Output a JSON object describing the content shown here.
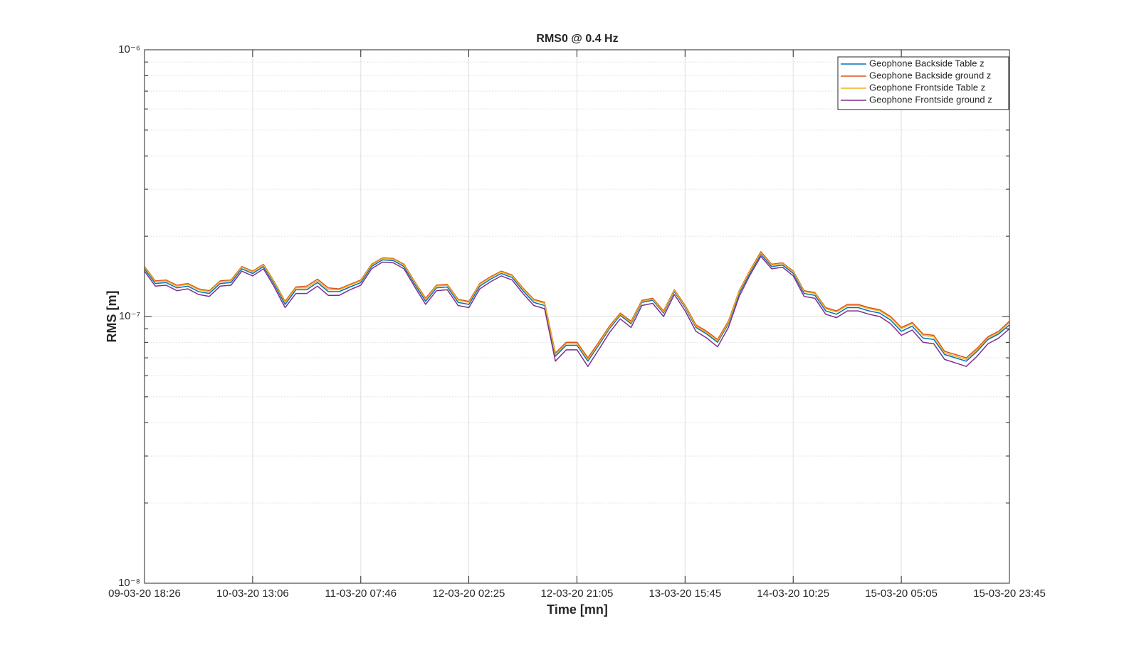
{
  "chart_data": {
    "type": "line",
    "title": "RMS0 @ 0.4 Hz",
    "xlabel": "Time [mn]",
    "ylabel": "RMS [m]",
    "yscale": "log",
    "grid": true,
    "legend": "upper right",
    "xlim": [
      "09-03-20 18:26",
      "15-03-20 23:45"
    ],
    "xticks": [
      "09-03-20 18:26",
      "10-03-20 13:06",
      "11-03-20 07:46",
      "12-03-20 02:25",
      "12-03-20 21:05",
      "13-03-20 15:45",
      "14-03-20 10:25",
      "15-03-20 05:05",
      "15-03-20 23:45"
    ],
    "ylim": [
      1e-08,
      1e-06
    ],
    "yticks": [
      {
        "value": 1e-08,
        "label": "10⁻⁸"
      },
      {
        "value": 1e-07,
        "label": "10⁻⁷"
      },
      {
        "value": 1e-06,
        "label": "10⁻⁶"
      }
    ],
    "yminorticks": [
      2e-08,
      3e-08,
      4e-08,
      5e-08,
      6e-08,
      7e-08,
      8e-08,
      9e-08,
      2e-07,
      3e-07,
      4e-07,
      5e-07,
      6e-07,
      7e-07,
      8e-07,
      9e-07
    ],
    "x": [
      "09-03-20 18:26",
      "09-03-20 20:18",
      "09-03-20 22:10",
      "10-03-20 00:02",
      "10-03-20 01:54",
      "10-03-20 03:46",
      "10-03-20 05:38",
      "10-03-20 07:30",
      "10-03-20 09:22",
      "10-03-20 11:14",
      "10-03-20 13:06",
      "10-03-20 14:58",
      "10-03-20 16:50",
      "10-03-20 18:42",
      "10-03-20 20:34",
      "10-03-20 22:26",
      "11-03-20 00:18",
      "11-03-20 02:10",
      "11-03-20 04:02",
      "11-03-20 05:54",
      "11-03-20 07:46",
      "11-03-20 09:38",
      "11-03-20 11:30",
      "11-03-20 13:22",
      "11-03-20 15:14",
      "11-03-20 17:06",
      "11-03-20 18:58",
      "11-03-20 20:50",
      "11-03-20 22:42",
      "12-03-20 00:34",
      "12-03-20 02:26",
      "12-03-20 04:18",
      "12-03-20 06:10",
      "12-03-20 08:02",
      "12-03-20 09:54",
      "12-03-20 11:46",
      "12-03-20 13:38",
      "12-03-20 15:30",
      "12-03-20 17:22",
      "12-03-20 19:14",
      "12-03-20 21:06",
      "12-03-20 22:58",
      "13-03-20 00:50",
      "13-03-20 02:42",
      "13-03-20 04:34",
      "13-03-20 06:26",
      "13-03-20 08:18",
      "13-03-20 10:10",
      "13-03-20 12:02",
      "13-03-20 13:54",
      "13-03-20 15:46",
      "13-03-20 17:38",
      "13-03-20 19:30",
      "13-03-20 21:22",
      "13-03-20 23:14",
      "14-03-20 01:06",
      "14-03-20 02:58",
      "14-03-20 04:50",
      "14-03-20 06:42",
      "14-03-20 08:34",
      "14-03-20 10:26",
      "14-03-20 12:18",
      "14-03-20 14:10",
      "14-03-20 16:02",
      "14-03-20 17:54",
      "14-03-20 19:46",
      "14-03-20 21:38",
      "14-03-20 23:30",
      "15-03-20 01:22",
      "15-03-20 03:14",
      "15-03-20 05:06",
      "15-03-20 06:58",
      "15-03-20 08:50",
      "15-03-20 10:42",
      "15-03-20 12:34",
      "15-03-20 14:26",
      "15-03-20 16:18",
      "15-03-20 18:10",
      "15-03-20 20:02",
      "15-03-20 21:54",
      "15-03-20 23:45"
    ],
    "series": [
      {
        "name": "Geophone Backside Table z",
        "color": "#0072bd",
        "values": [
          1.51e-07,
          1.33e-07,
          1.34e-07,
          1.28e-07,
          1.3e-07,
          1.24e-07,
          1.22e-07,
          1.33e-07,
          1.34e-07,
          1.51e-07,
          1.45e-07,
          1.54e-07,
          1.32e-07,
          1.11e-07,
          1.26e-07,
          1.26e-07,
          1.34e-07,
          1.24e-07,
          1.24e-07,
          1.29e-07,
          1.34e-07,
          1.54e-07,
          1.63e-07,
          1.62e-07,
          1.54e-07,
          1.32e-07,
          1.14e-07,
          1.28e-07,
          1.29e-07,
          1.13e-07,
          1.11e-07,
          1.3e-07,
          1.38e-07,
          1.45e-07,
          1.4e-07,
          1.25e-07,
          1.13e-07,
          1.1e-07,
          7.1e-08,
          7.8e-08,
          7.8e-08,
          6.8e-08,
          7.8e-08,
          9e-08,
          1.01e-07,
          9.4e-08,
          1.13e-07,
          1.15e-07,
          1.03e-07,
          1.24e-07,
          1.08e-07,
          9.1e-08,
          8.6e-08,
          8e-08,
          9.4e-08,
          1.22e-07,
          1.46e-07,
          1.71e-07,
          1.54e-07,
          1.56e-07,
          1.45e-07,
          1.22e-07,
          1.2e-07,
          1.05e-07,
          1.02e-07,
          1.08e-07,
          1.08e-07,
          1.05e-07,
          1.03e-07,
          9.7e-08,
          8.8e-08,
          9.2e-08,
          8.3e-08,
          8.2e-08,
          7.2e-08,
          7e-08,
          6.8e-08,
          7.4e-08,
          8.2e-08,
          8.6e-08,
          9.3e-08
        ]
      },
      {
        "name": "Geophone Backside ground z",
        "color": "#d95319",
        "values": [
          1.54e-07,
          1.36e-07,
          1.37e-07,
          1.31e-07,
          1.33e-07,
          1.27e-07,
          1.25e-07,
          1.36e-07,
          1.37e-07,
          1.54e-07,
          1.48e-07,
          1.57e-07,
          1.35e-07,
          1.14e-07,
          1.29e-07,
          1.3e-07,
          1.38e-07,
          1.28e-07,
          1.27e-07,
          1.32e-07,
          1.37e-07,
          1.57e-07,
          1.66e-07,
          1.65e-07,
          1.57e-07,
          1.35e-07,
          1.17e-07,
          1.31e-07,
          1.32e-07,
          1.16e-07,
          1.14e-07,
          1.33e-07,
          1.41e-07,
          1.48e-07,
          1.43e-07,
          1.28e-07,
          1.16e-07,
          1.13e-07,
          7.3e-08,
          8e-08,
          8e-08,
          7e-08,
          8e-08,
          9.2e-08,
          1.03e-07,
          9.6e-08,
          1.15e-07,
          1.17e-07,
          1.05e-07,
          1.26e-07,
          1.1e-07,
          9.3e-08,
          8.8e-08,
          8.2e-08,
          9.6e-08,
          1.25e-07,
          1.49e-07,
          1.75e-07,
          1.57e-07,
          1.59e-07,
          1.48e-07,
          1.25e-07,
          1.23e-07,
          1.08e-07,
          1.05e-07,
          1.11e-07,
          1.11e-07,
          1.08e-07,
          1.06e-07,
          1e-07,
          9.1e-08,
          9.5e-08,
          8.6e-08,
          8.5e-08,
          7.4e-08,
          7.2e-08,
          7e-08,
          7.6e-08,
          8.4e-08,
          8.8e-08,
          9.6e-08
        ]
      },
      {
        "name": "Geophone Frontside Table z",
        "color": "#edb120",
        "values": [
          1.53e-07,
          1.35e-07,
          1.36e-07,
          1.3e-07,
          1.32e-07,
          1.26e-07,
          1.24e-07,
          1.35e-07,
          1.36e-07,
          1.53e-07,
          1.47e-07,
          1.56e-07,
          1.34e-07,
          1.13e-07,
          1.28e-07,
          1.28e-07,
          1.36e-07,
          1.26e-07,
          1.26e-07,
          1.31e-07,
          1.36e-07,
          1.56e-07,
          1.65e-07,
          1.64e-07,
          1.56e-07,
          1.34e-07,
          1.16e-07,
          1.3e-07,
          1.31e-07,
          1.15e-07,
          1.13e-07,
          1.32e-07,
          1.4e-07,
          1.47e-07,
          1.42e-07,
          1.27e-07,
          1.15e-07,
          1.12e-07,
          7.2e-08,
          7.9e-08,
          7.9e-08,
          6.9e-08,
          7.9e-08,
          9.1e-08,
          1.02e-07,
          9.5e-08,
          1.14e-07,
          1.16e-07,
          1.04e-07,
          1.25e-07,
          1.09e-07,
          9.2e-08,
          8.7e-08,
          8.1e-08,
          9.5e-08,
          1.24e-07,
          1.48e-07,
          1.73e-07,
          1.56e-07,
          1.58e-07,
          1.47e-07,
          1.24e-07,
          1.22e-07,
          1.07e-07,
          1.04e-07,
          1.1e-07,
          1.1e-07,
          1.07e-07,
          1.05e-07,
          9.9e-08,
          9e-08,
          9.4e-08,
          8.5e-08,
          8.4e-08,
          7.3e-08,
          7.1e-08,
          6.9e-08,
          7.5e-08,
          8.3e-08,
          8.7e-08,
          9.5e-08
        ]
      },
      {
        "name": "Geophone Frontside ground z",
        "color": "#7e2f8e",
        "values": [
          1.48e-07,
          1.3e-07,
          1.31e-07,
          1.25e-07,
          1.27e-07,
          1.21e-07,
          1.19e-07,
          1.3e-07,
          1.31e-07,
          1.48e-07,
          1.42e-07,
          1.51e-07,
          1.29e-07,
          1.08e-07,
          1.22e-07,
          1.22e-07,
          1.3e-07,
          1.2e-07,
          1.2e-07,
          1.26e-07,
          1.31e-07,
          1.51e-07,
          1.6e-07,
          1.59e-07,
          1.51e-07,
          1.29e-07,
          1.11e-07,
          1.25e-07,
          1.26e-07,
          1.1e-07,
          1.08e-07,
          1.27e-07,
          1.35e-07,
          1.42e-07,
          1.37e-07,
          1.22e-07,
          1.1e-07,
          1.07e-07,
          6.8e-08,
          7.5e-08,
          7.5e-08,
          6.5e-08,
          7.5e-08,
          8.7e-08,
          9.8e-08,
          9.1e-08,
          1.1e-07,
          1.12e-07,
          1e-07,
          1.21e-07,
          1.05e-07,
          8.8e-08,
          8.3e-08,
          7.7e-08,
          9.1e-08,
          1.19e-07,
          1.43e-07,
          1.68e-07,
          1.51e-07,
          1.53e-07,
          1.42e-07,
          1.19e-07,
          1.17e-07,
          1.02e-07,
          9.9e-08,
          1.05e-07,
          1.05e-07,
          1.02e-07,
          1e-07,
          9.4e-08,
          8.5e-08,
          8.9e-08,
          8e-08,
          7.9e-08,
          6.9e-08,
          6.7e-08,
          6.5e-08,
          7.1e-08,
          7.9e-08,
          8.3e-08,
          9e-08
        ]
      }
    ]
  }
}
